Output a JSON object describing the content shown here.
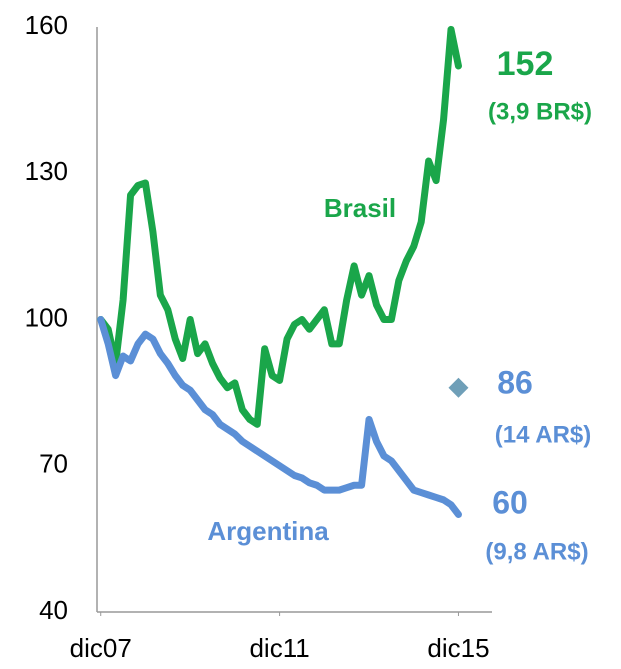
{
  "chart_data": {
    "type": "line",
    "x": [
      0,
      2,
      4,
      6,
      8,
      10,
      12,
      14,
      16,
      18,
      20,
      22,
      24,
      26,
      28,
      30,
      32,
      34,
      36,
      38,
      40,
      42,
      44,
      46,
      48,
      50,
      52,
      54,
      56,
      58,
      60,
      62,
      64,
      66,
      68,
      70,
      72,
      74,
      76,
      78,
      80,
      82,
      84,
      86,
      88,
      90,
      92,
      94,
      96
    ],
    "series": [
      {
        "name": "Brasil",
        "color": "#1aa64a",
        "values": [
          100,
          98,
          91,
          104,
          125.5,
          127.5,
          128,
          118,
          105,
          102,
          96,
          92,
          100,
          93,
          95,
          91,
          88,
          86,
          87,
          81.5,
          79.5,
          78.5,
          94,
          88.5,
          87.5,
          96,
          99,
          100,
          98,
          100,
          102,
          95,
          95,
          104,
          111,
          105,
          109,
          103,
          100,
          100,
          108,
          112,
          115,
          120,
          132.5,
          128.5,
          141,
          159.5,
          152
        ]
      },
      {
        "name": "Argentina",
        "color": "#5b8fd6",
        "values": [
          100,
          95,
          88.5,
          92.5,
          91.5,
          95,
          97,
          96,
          93,
          91,
          88.5,
          86.5,
          85.5,
          83.5,
          81.5,
          80.5,
          78.5,
          77.5,
          76.5,
          75,
          74,
          73,
          72,
          71,
          70,
          69,
          68,
          67.5,
          66.5,
          66,
          65,
          65,
          65,
          65.5,
          66,
          66,
          79.5,
          75,
          72,
          71,
          69,
          67,
          65,
          64.5,
          64,
          63.5,
          63,
          62,
          60
        ]
      }
    ],
    "markers": [
      {
        "x": 96,
        "value": 86,
        "color": "#6f9fb8"
      }
    ],
    "annotations": [
      "(3,9 BR$)",
      "(14 AR$)",
      "(9,8 AR$)"
    ],
    "xlim": [
      -1,
      105
    ],
    "xticks": [
      {
        "value": 0,
        "label": "dic07"
      },
      {
        "value": 48,
        "label": "dic11"
      },
      {
        "value": 96,
        "label": "dic15"
      }
    ],
    "ylim": [
      40,
      160
    ],
    "yticks": [
      40,
      70,
      100,
      130,
      160
    ],
    "grid": false
  }
}
